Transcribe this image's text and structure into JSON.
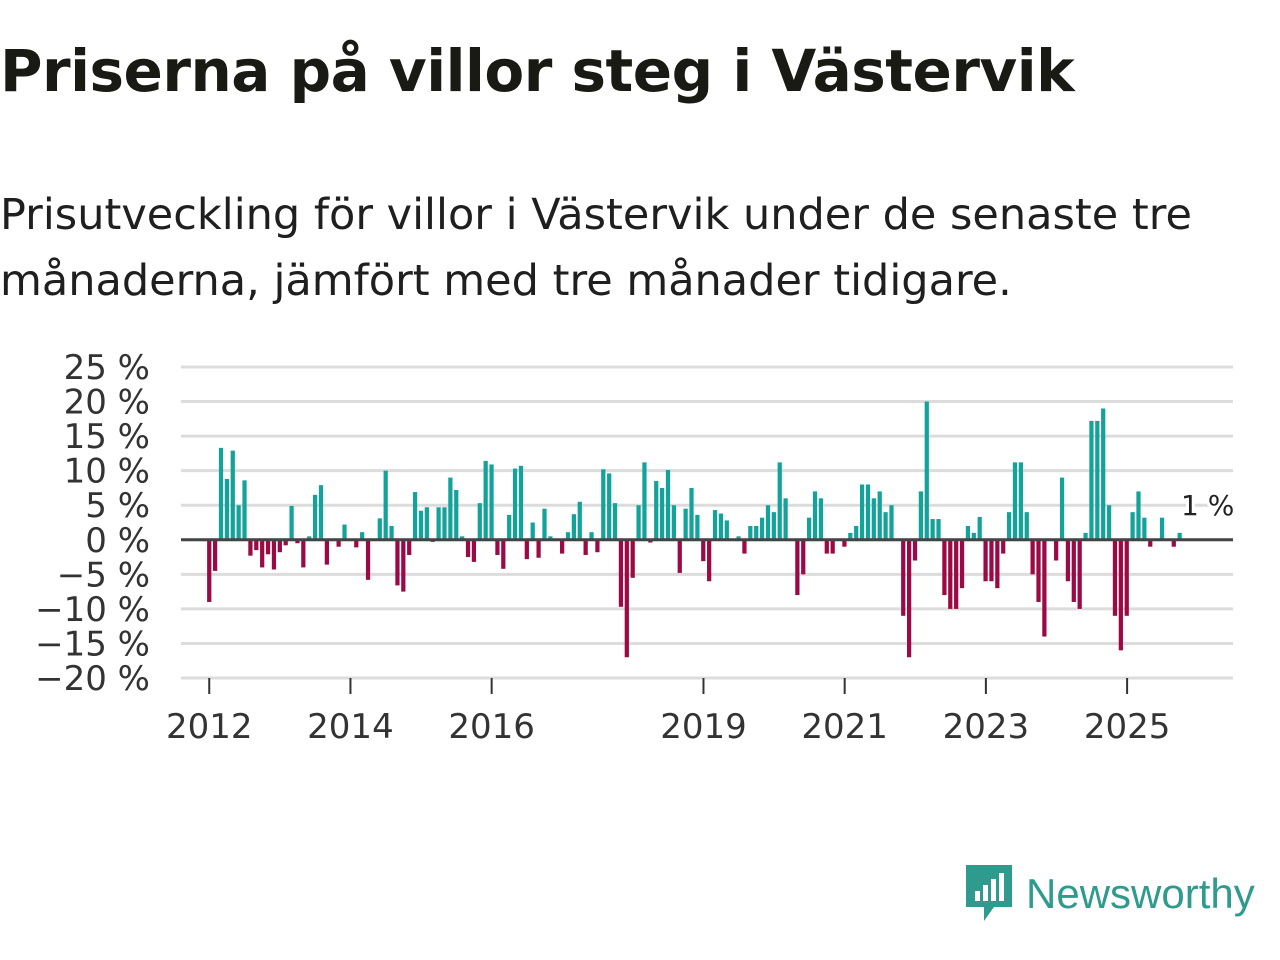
{
  "headline": "Priserna på villor steg i Västervik",
  "subheadline": "Prisutveckling för villor i Västervik under de senaste tre månaderna, jämfört med tre månader tidigare.",
  "brand": {
    "name": "Newsworthy",
    "icon": "newsworthy-logo-icon"
  },
  "colors": {
    "positive": "#14a39a",
    "negative": "#9b0a45",
    "grid": "#dcdcdc",
    "zero_line": "#444444",
    "brand": "#2f9a8e"
  },
  "chart_data": {
    "type": "bar",
    "title": "Priserna på villor steg i Västervik",
    "subtitle": "Prisutveckling för villor i Västervik under de senaste tre månaderna, jämfört med tre månader tidigare.",
    "xlabel": "",
    "ylabel": "",
    "unit": "%",
    "ylim": [
      -20,
      25
    ],
    "yticks": [
      25,
      20,
      15,
      10,
      5,
      0,
      -5,
      -10,
      -15,
      -20
    ],
    "ytick_labels": [
      "25 %",
      "20 %",
      "15 %",
      "10 %",
      "5 %",
      "0 %",
      "−5 %",
      "−10 %",
      "−15 %",
      "−20 %"
    ],
    "xlim": [
      2011.6,
      2026.5
    ],
    "xticks": [
      2012,
      2014,
      2016,
      2019,
      2021,
      2023,
      2025
    ],
    "xtick_labels": [
      "2012",
      "2014",
      "2016",
      "2019",
      "2021",
      "2023",
      "2025"
    ],
    "grid": true,
    "bar_interval_years": 0.0833,
    "start_year": 2012.0,
    "values": [
      -9,
      -4.5,
      13.3,
      8.8,
      12.9,
      5,
      8.6,
      -2.3,
      -1.5,
      -4,
      -2.1,
      -4.3,
      -1.8,
      -0.8,
      4.9,
      -0.5,
      -4,
      0.5,
      6.5,
      7.9,
      -3.6,
      0,
      -1,
      2.2,
      0,
      -1.1,
      1.1,
      -5.8,
      0,
      3.1,
      10,
      2,
      -6.6,
      -7.5,
      -2.2,
      6.9,
      4.2,
      4.7,
      -0.3,
      4.7,
      4.7,
      9,
      7.2,
      0.5,
      -2.5,
      -3.2,
      5.3,
      11.4,
      10.9,
      -2.2,
      -4.2,
      3.6,
      10.3,
      10.7,
      -2.8,
      2.5,
      -2.6,
      4.5,
      0.5,
      0,
      -2,
      1.1,
      3.7,
      5.5,
      -2.2,
      1.1,
      -1.8,
      10.2,
      9.6,
      5.3,
      -9.7,
      -17,
      -5.5,
      5,
      11.2,
      -0.4,
      8.5,
      7.5,
      10.1,
      5,
      -4.8,
      4.5,
      7.5,
      3.6,
      -3.1,
      -6,
      4.3,
      3.8,
      2.8,
      0,
      0.5,
      -2,
      2,
      2,
      3.2,
      5,
      4,
      11.2,
      6,
      0,
      -8,
      -5,
      3.2,
      7,
      6,
      -2,
      -2,
      0,
      -1,
      1,
      2,
      8,
      8,
      6,
      7,
      4,
      5,
      0,
      -11,
      -17,
      -3,
      7,
      20,
      3,
      3,
      -8,
      -10,
      -10,
      -7,
      2,
      1,
      3.3,
      -6,
      -6,
      -7,
      -2,
      4,
      11.2,
      11.2,
      4,
      -5,
      -9,
      -14,
      0,
      -3,
      9,
      -6,
      -9,
      -10,
      1,
      17.2,
      17.2,
      19,
      5,
      -11,
      -16,
      -11,
      4,
      7,
      3.2,
      -1,
      0,
      3.2,
      0,
      -1,
      1
    ],
    "annotation": {
      "label": "1 %",
      "value": 1,
      "position": "last-bar"
    }
  }
}
